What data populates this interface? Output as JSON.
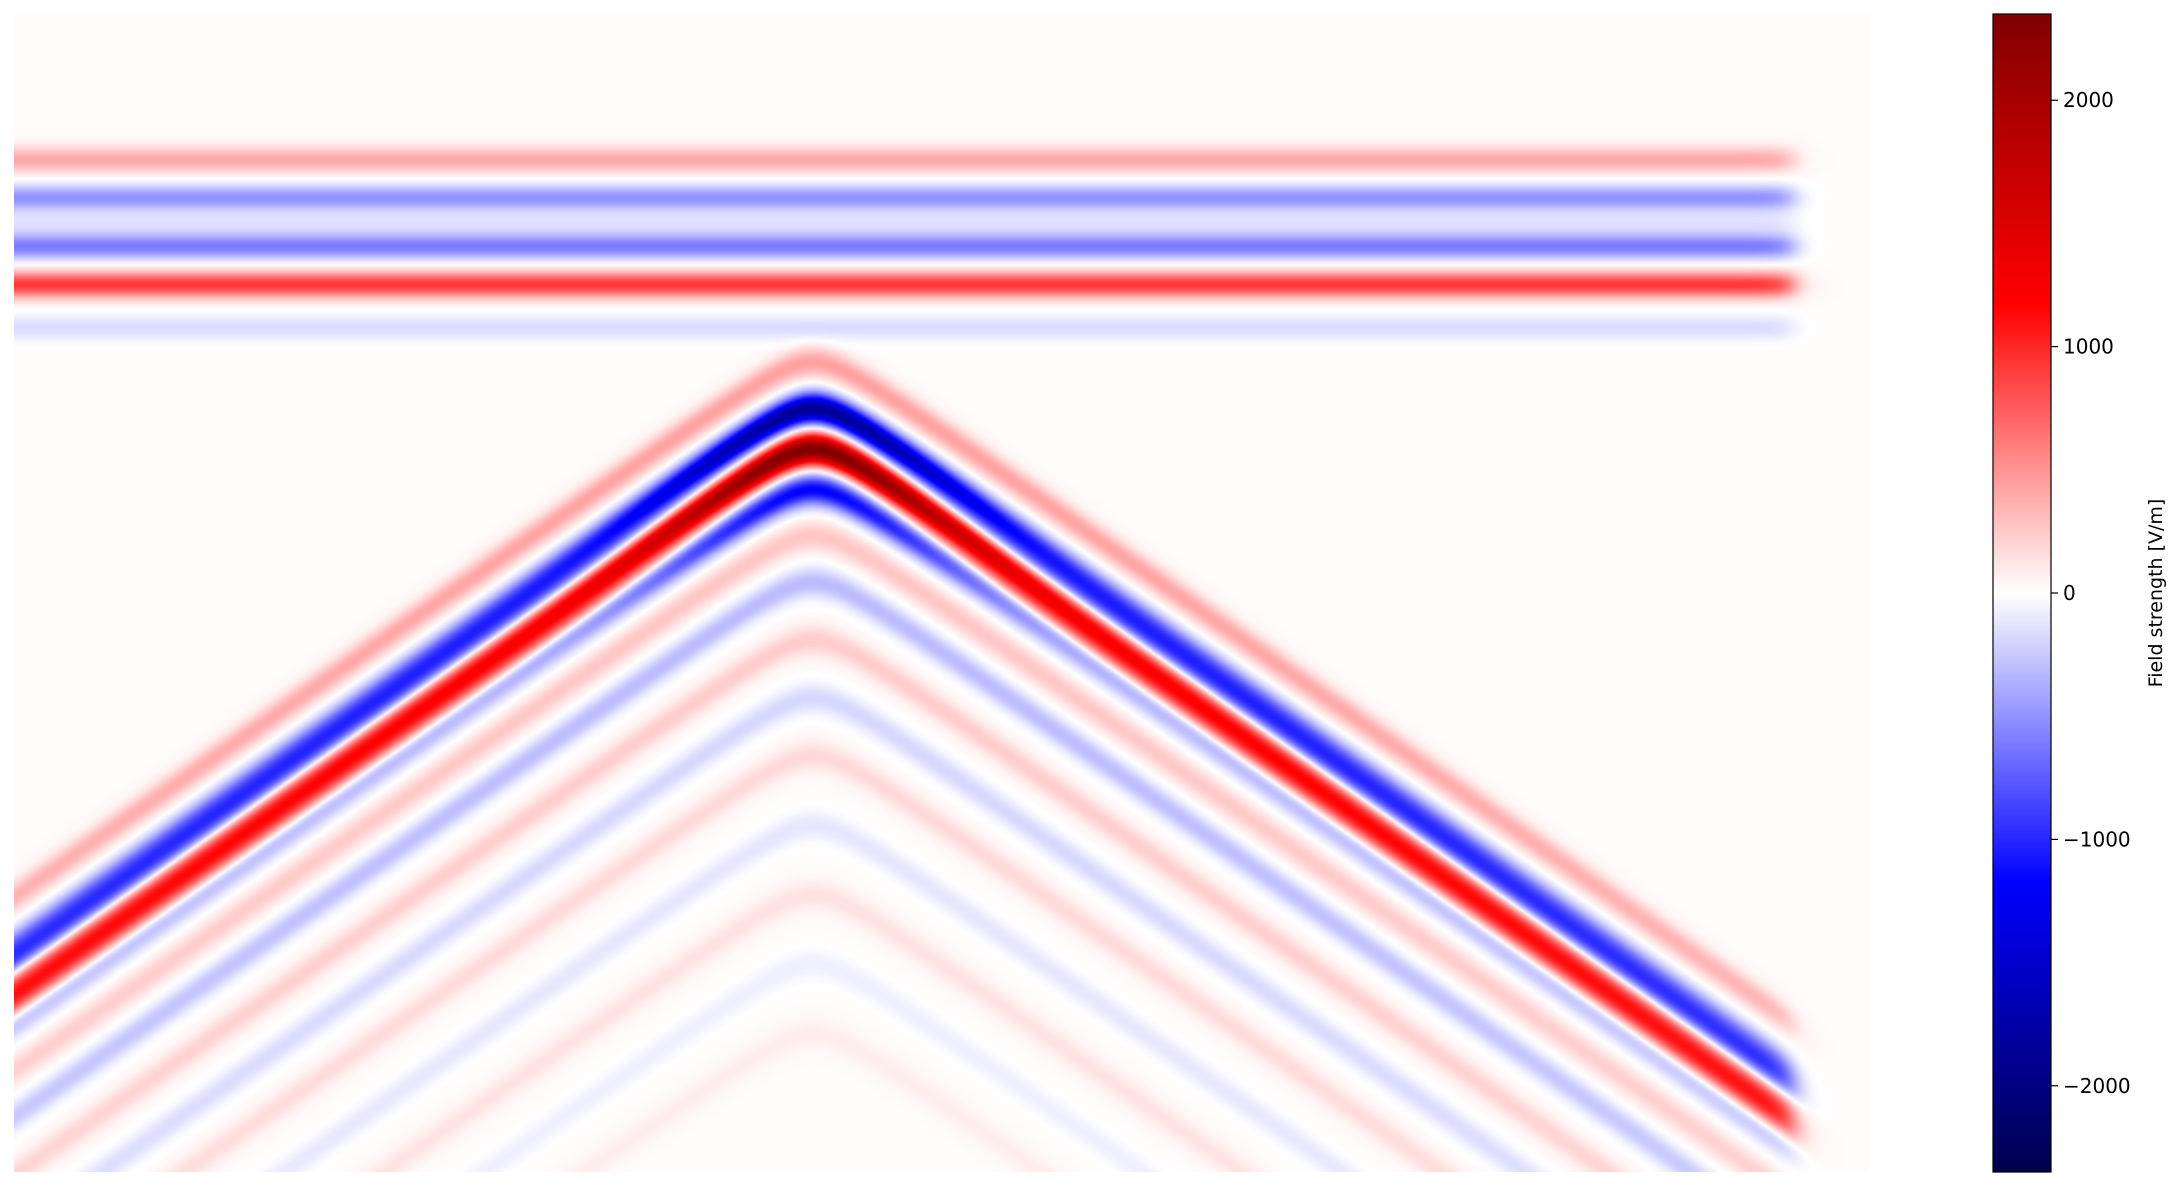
{
  "chart_data": {
    "type": "heatmap",
    "title": "",
    "xlabel": "",
    "ylabel": "",
    "axes_visible": false,
    "colormap": "seismic",
    "colormap_stops": [
      "#00004c",
      "#0000ff",
      "#ffffff",
      "#ff0000",
      "#800000"
    ],
    "colorbar": {
      "label": "Field strength [V/m]",
      "range": [
        -2350,
        2350
      ],
      "ticks": [
        -2000,
        -1000,
        0,
        1000,
        2000
      ],
      "tick_labels": [
        "−2000",
        "−1000",
        "0",
        "1000",
        "2000"
      ],
      "position": "right"
    },
    "horizontal_bands": [
      {
        "rel_depth": 0.125,
        "value": 380
      },
      {
        "rel_depth": 0.158,
        "value": -520
      },
      {
        "rel_depth": 0.18,
        "value": -130
      },
      {
        "rel_depth": 0.2,
        "value": -620
      },
      {
        "rel_depth": 0.233,
        "value": 900
      },
      {
        "rel_depth": 0.27,
        "value": -180
      }
    ],
    "hyperbola": {
      "apex_x": 0.43,
      "apex_depth": 0.3,
      "curvature": 1.25,
      "dominant_peak_value": 2350,
      "dominant_trough_value": -1900,
      "events": [
        {
          "offset": 0.0,
          "value": 420
        },
        {
          "offset": 0.04,
          "value": -1900
        },
        {
          "offset": 0.075,
          "value": 2350
        },
        {
          "offset": 0.11,
          "value": -1200
        },
        {
          "offset": 0.15,
          "value": 250
        },
        {
          "offset": 0.19,
          "value": -330
        },
        {
          "offset": 0.24,
          "value": 220
        },
        {
          "offset": 0.29,
          "value": -200
        },
        {
          "offset": 0.34,
          "value": 160
        },
        {
          "offset": 0.4,
          "value": -130
        },
        {
          "offset": 0.46,
          "value": 120
        },
        {
          "offset": 0.52,
          "value": -90
        },
        {
          "offset": 0.58,
          "value": 70
        }
      ]
    }
  }
}
